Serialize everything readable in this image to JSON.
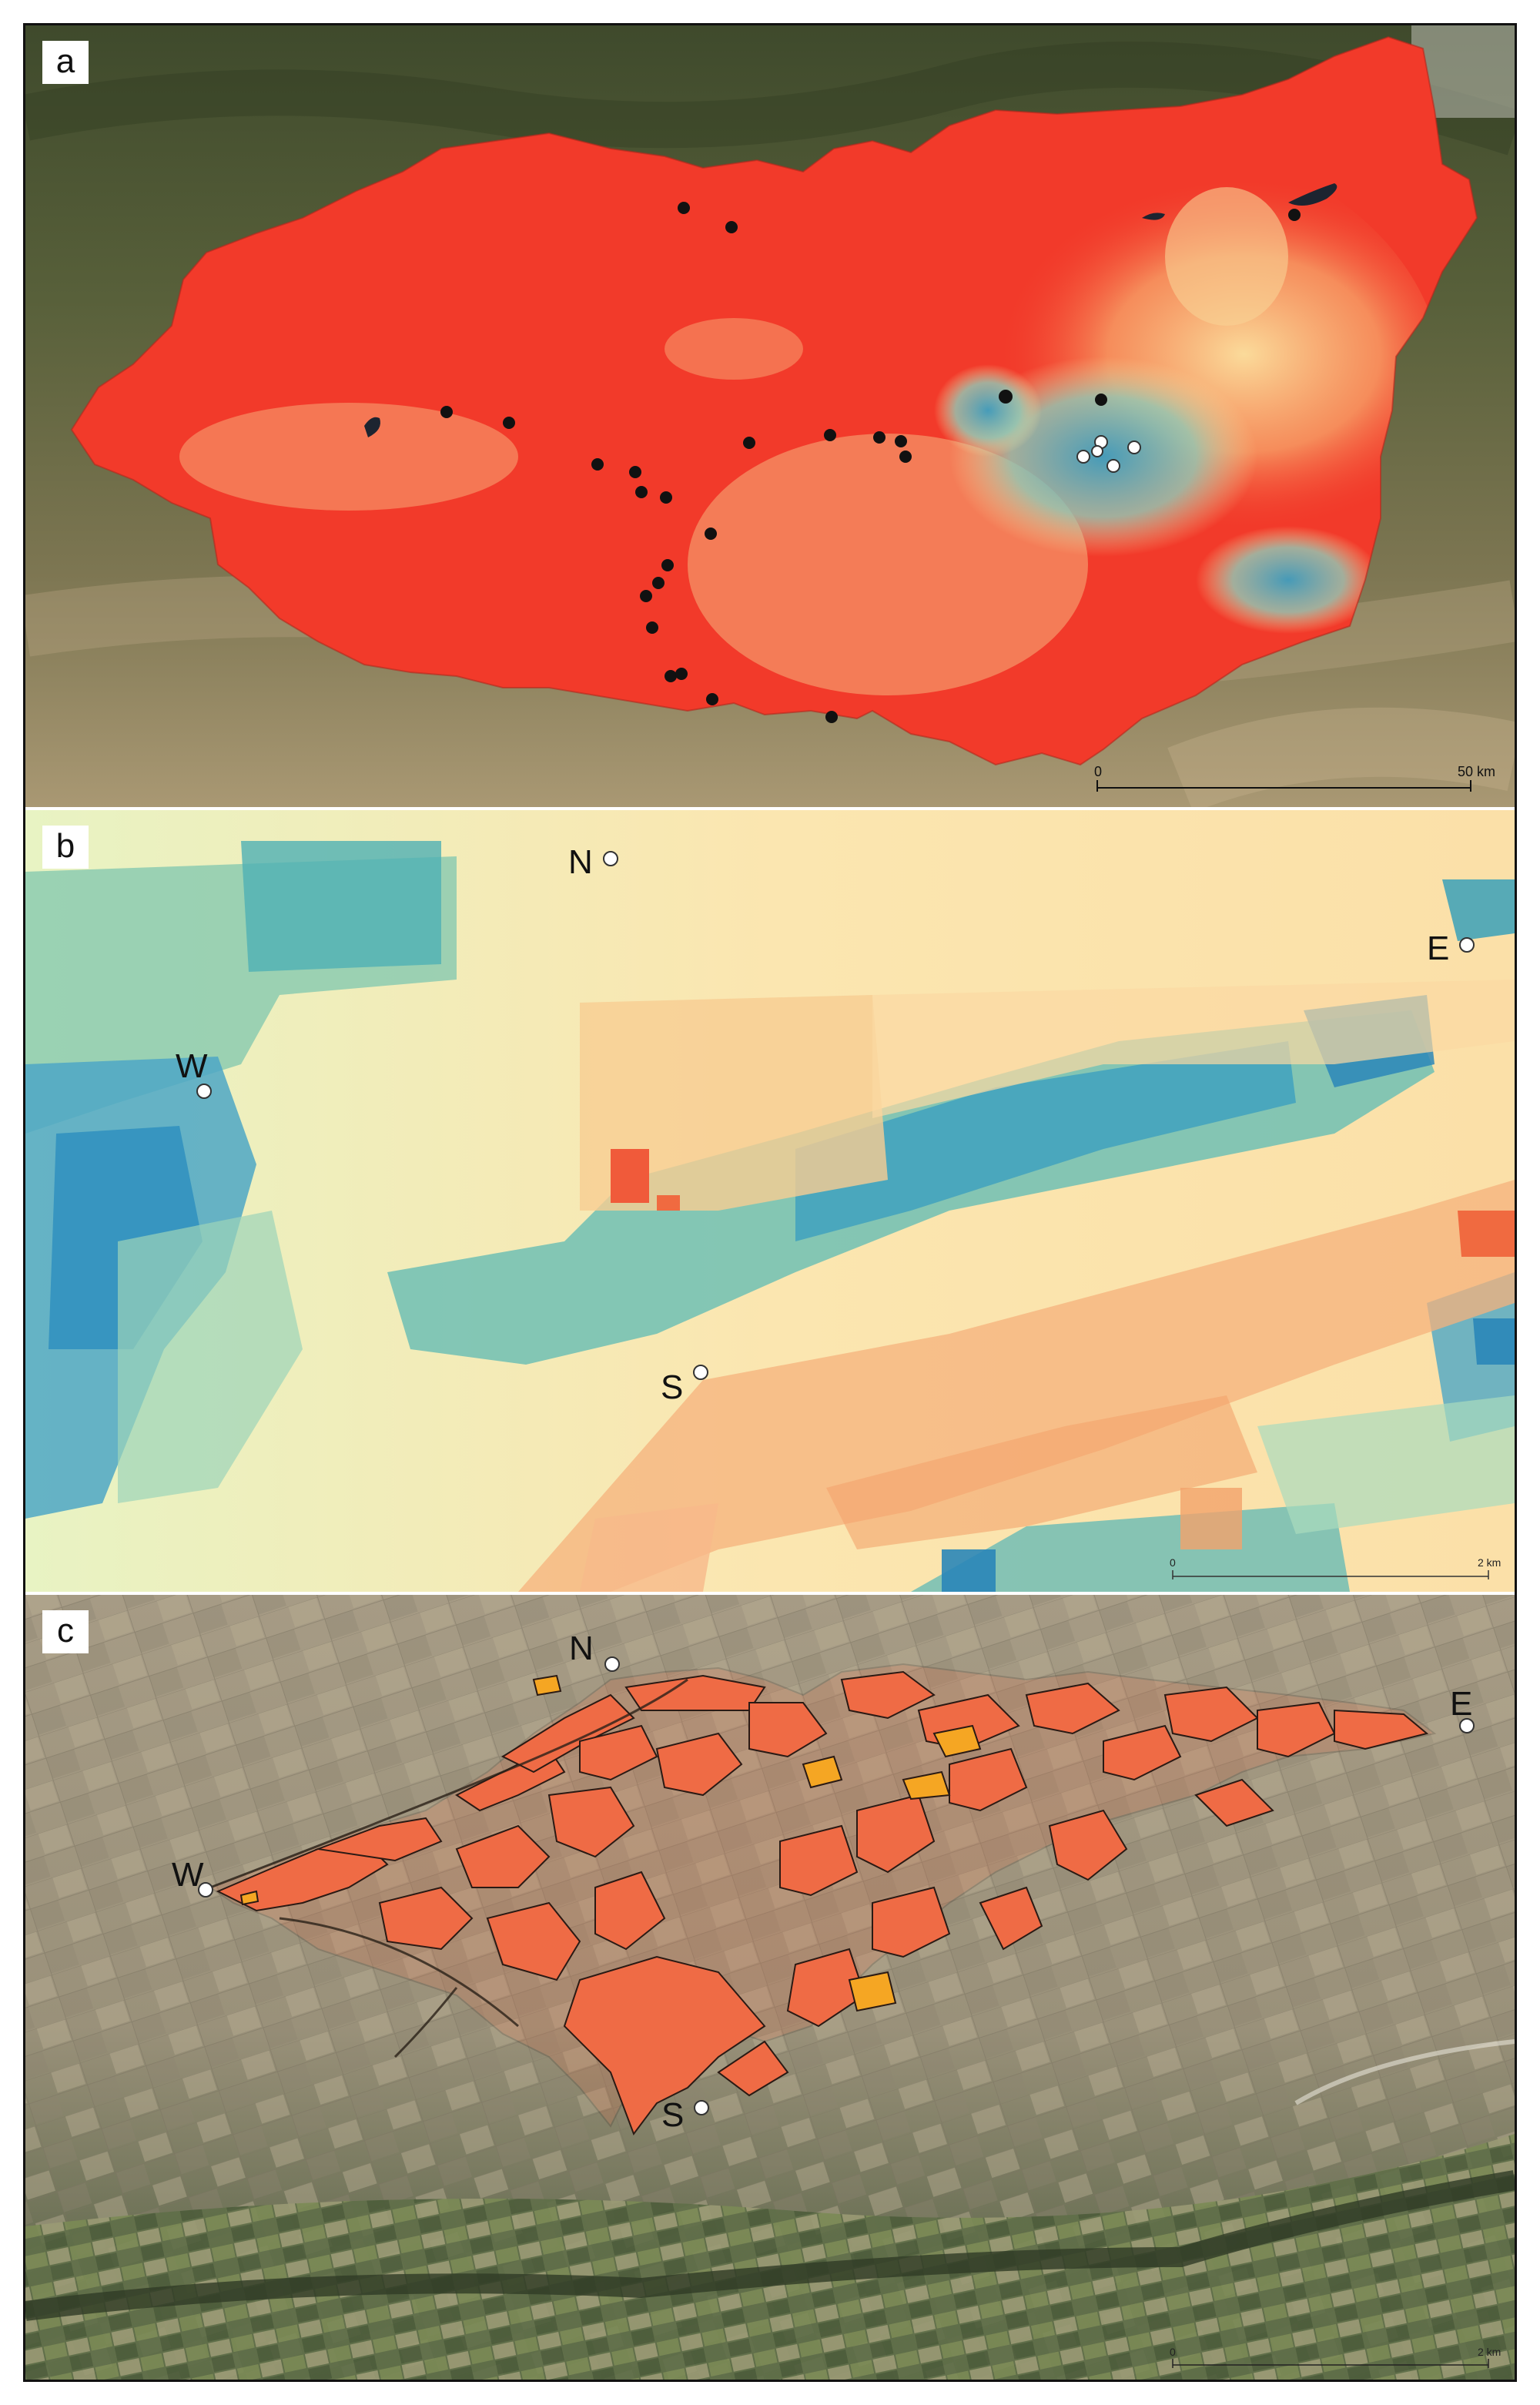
{
  "panels": {
    "a": {
      "letter": "a",
      "scale": {
        "start": "0",
        "end": "50 km"
      }
    },
    "b": {
      "letter": "b",
      "points": {
        "N": "N",
        "E": "E",
        "W": "W",
        "S": "S"
      },
      "scale": {
        "start": "0",
        "end": "2 km"
      }
    },
    "c": {
      "letter": "c",
      "points": {
        "N": "N",
        "E": "E",
        "W": "W",
        "S": "S"
      },
      "scale": {
        "start": "0",
        "end": "2 km"
      }
    }
  },
  "colors": {
    "raster_high": "#f23a2a",
    "raster_mid": "#fbe3a0",
    "raster_low": "#4ba6c4",
    "parcel_fill": "#ef6b45",
    "parcel_highlight": "#f5a623",
    "sample_black": "#111111",
    "sample_white": "#ffffff"
  }
}
